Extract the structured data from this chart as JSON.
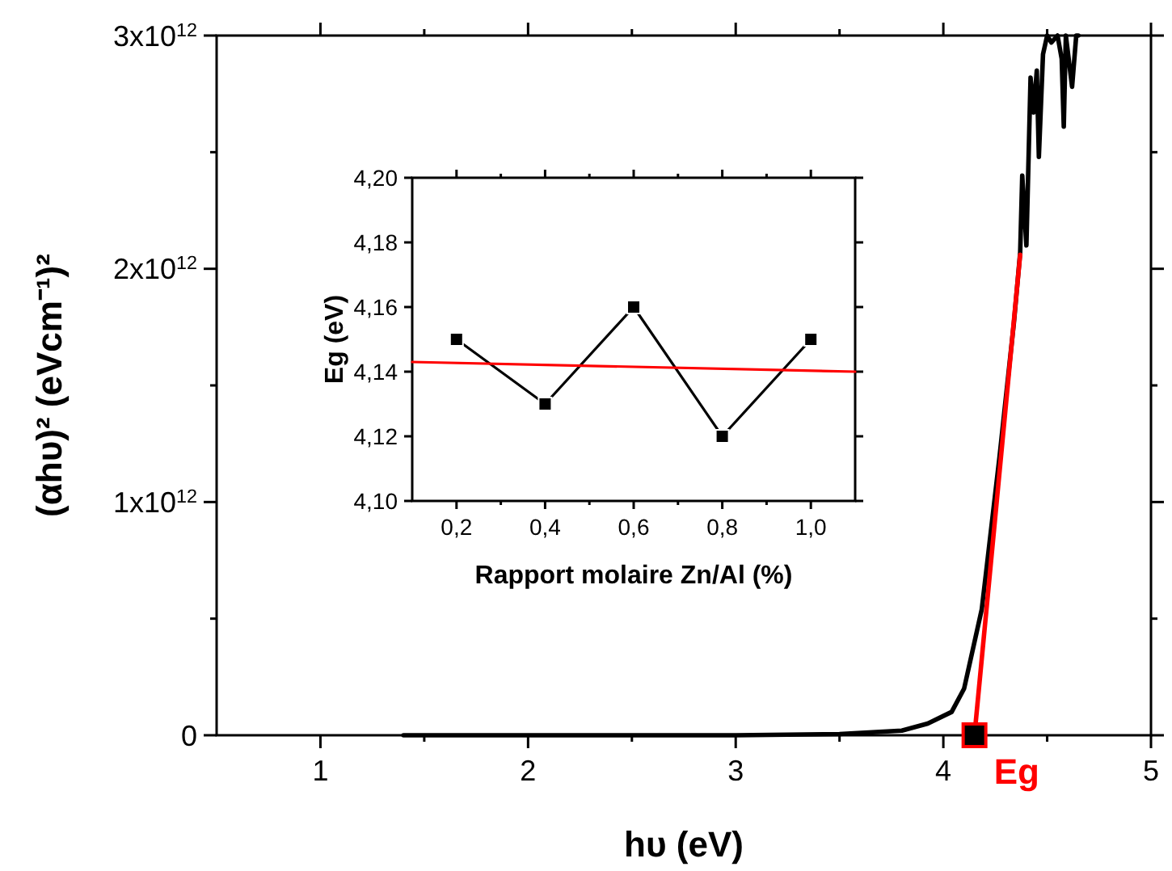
{
  "chart_data": [
    {
      "type": "line",
      "xlabel": "hυ (eV)",
      "ylabel": "(αhυ)² (eVcm⁻¹)²",
      "xlim": [
        0.5,
        5
      ],
      "ylim": [
        0,
        3000000000000.0
      ],
      "xticks": [
        1,
        {
          "value": 1.5,
          "label": null
        },
        2,
        {
          "value": 2.5,
          "label": null
        },
        3,
        {
          "value": 3.5,
          "label": null
        },
        4,
        {
          "value": 4.5,
          "label": null
        },
        5
      ],
      "yticks": [
        0,
        {
          "value": 500000000000.0,
          "label": null
        },
        {
          "value": 1000000000000.0,
          "label": "1x10$^{12}$"
        },
        {
          "value": 1500000000000.0,
          "label": null
        },
        {
          "value": 2000000000000.0,
          "label": "2x10$^{12}$"
        },
        {
          "value": 2500000000000.0,
          "label": null
        },
        {
          "value": 3000000000000.0,
          "label": "3x10$^{12}$"
        }
      ],
      "grid": false,
      "marker": "none",
      "line_style": "solid",
      "series": [
        {
          "color": "#000000",
          "x": [
            1.4,
            3.0,
            3.5,
            3.8,
            3.925,
            4.04,
            4.1,
            4.185,
            4.21,
            4.27,
            4.34,
            4.37,
            4.38,
            4.4,
            4.42,
            4.435,
            4.45,
            4.46,
            4.48,
            4.5,
            4.52,
            4.55,
            4.57,
            4.58,
            4.59,
            4.62,
            4.64,
            4.65
          ],
          "values": [
            0,
            0,
            5000000000.0,
            20000000000.0,
            50000000000.0,
            100000000000.0,
            200000000000.0,
            540000000000.0,
            730000000000.0,
            1190000000000.0,
            1770000000000.0,
            2070000000000.0,
            2400000000000.0,
            2100000000000.0,
            2820000000000.0,
            2670000000000.0,
            2850000000000.0,
            2480000000000.0,
            2920000000000.0,
            3000000000000.0,
            2970000000000.0,
            3000000000000.0,
            2900000000000.0,
            2610000000000.0,
            3000000000000.0,
            2780000000000.0,
            3000000000000.0,
            3000000000000.0
          ]
        },
        {
          "color": "#ff0000",
          "x": [
            4.15,
            4.37
          ],
          "values": [
            0,
            2060000000000.0
          ]
        },
        {
          "type": "scatter",
          "marker": "square",
          "color": "#000000",
          "x": [
            4.15
          ],
          "values": [
            0
          ]
        }
      ],
      "annotations": [
        {
          "text": "Eg",
          "x": 4.15,
          "y": 0
        }
      ]
    },
    {
      "type": "line",
      "xlabel": "Rapport molaire Zn/Al (%)",
      "ylabel": "Eg (eV)",
      "xlim": [
        0.1,
        1.1
      ],
      "ylim": [
        4.1,
        4.2
      ],
      "xticks": [
        {
          "value": 0.2,
          "label": "0,2"
        },
        {
          "value": 0.3,
          "label": null
        },
        {
          "value": 0.4,
          "label": "0,4"
        },
        {
          "value": 0.5,
          "label": null
        },
        {
          "value": 0.6,
          "label": "0,6"
        },
        {
          "value": 0.7,
          "label": null
        },
        {
          "value": 0.8,
          "label": "0,8"
        },
        {
          "value": 0.9,
          "label": null
        },
        {
          "value": 1.0,
          "label": "1,0"
        }
      ],
      "yticks": [
        {
          "value": 4.1,
          "label": "4,10"
        },
        {
          "value": 4.12,
          "label": "4,12"
        },
        {
          "value": 4.14,
          "label": "4,14"
        },
        {
          "value": 4.16,
          "label": "4,16"
        },
        {
          "value": 4.18,
          "label": "4,18"
        },
        {
          "value": 4.2,
          "label": "4,20"
        }
      ],
      "grid": false,
      "line_style": "solid",
      "series": [
        {
          "color": "#000000",
          "marker": "square",
          "x": [
            0.2,
            0.4,
            0.6,
            0.8,
            1.0
          ],
          "values": [
            4.15,
            4.13,
            4.16,
            4.12,
            4.15
          ]
        },
        {
          "color": "#ff0000",
          "marker": "none",
          "x": [
            0.1,
            1.1
          ],
          "values": [
            4.143,
            4.14
          ]
        }
      ]
    }
  ]
}
